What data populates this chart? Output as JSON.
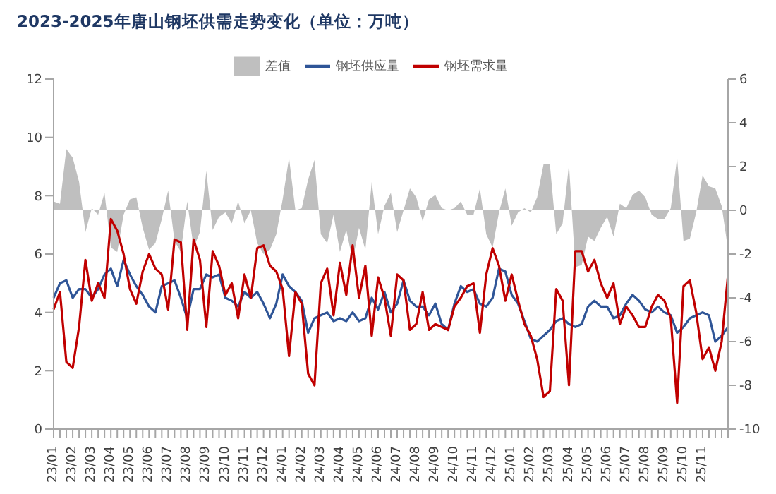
{
  "chart_data": {
    "type": "line",
    "title": "2023-2025年唐山钢坯供需走势变化（单位：万吨）",
    "categories": [
      "23/01",
      null,
      null,
      "23/02",
      null,
      null,
      "23/03",
      null,
      null,
      "23/04",
      null,
      null,
      "23/05",
      null,
      null,
      "23/06",
      null,
      null,
      "23/07",
      null,
      null,
      "23/08",
      null,
      null,
      "23/09",
      null,
      null,
      "23/10",
      null,
      null,
      "23/11",
      null,
      null,
      "23/12",
      null,
      null,
      "24/01",
      null,
      null,
      "24/02",
      null,
      null,
      "24/03",
      null,
      null,
      "24/04",
      null,
      null,
      "24/05",
      null,
      null,
      "24/06",
      null,
      null,
      "24/07",
      null,
      null,
      "24/08",
      null,
      null,
      "24/09",
      null,
      null,
      "24/10",
      null,
      null,
      "24/11",
      null,
      null,
      "24/12",
      null,
      null,
      "25/01",
      null,
      null,
      "25/02",
      null,
      null,
      "25/03",
      null,
      null,
      "25/04",
      null,
      null,
      "25/05",
      null,
      null,
      "25/06",
      null,
      null,
      "25/07",
      null,
      null,
      "25/08",
      null,
      null,
      "25/09",
      null,
      null,
      "25/10",
      null,
      null,
      "25/11",
      null,
      null,
      null,
      null
    ],
    "series": [
      {
        "name": "差值",
        "type": "area",
        "axis": "y2",
        "color": "#bfbfbf",
        "values": [
          0.4,
          0.3,
          2.8,
          2.4,
          1.3,
          -1.0,
          0.1,
          -0.2,
          0.8,
          -1.7,
          -1.9,
          -0.2,
          0.5,
          0.6,
          -0.8,
          -1.8,
          -1.5,
          -0.4,
          0.9,
          -1.4,
          -1.9,
          0.4,
          -1.7,
          -1.0,
          1.8,
          -0.9,
          -0.3,
          -0.1,
          -0.6,
          0.4,
          -0.6,
          0.0,
          -1.5,
          -2.0,
          -1.8,
          -1.1,
          0.5,
          2.4,
          0.0,
          0.1,
          1.4,
          2.3,
          -1.1,
          -1.5,
          -0.2,
          -1.9,
          -0.9,
          -2.3,
          -0.8,
          -1.8,
          1.3,
          -1.1,
          0.2,
          0.8,
          -1.0,
          0.0,
          1.0,
          0.6,
          -0.5,
          0.5,
          0.7,
          0.1,
          0.0,
          0.1,
          0.4,
          -0.2,
          -0.2,
          1.0,
          -1.1,
          -1.7,
          -0.1,
          1.0,
          -0.7,
          -0.1,
          0.1,
          -0.1,
          0.6,
          2.1,
          2.1,
          -1.1,
          -0.6,
          2.1,
          -2.6,
          -2.5,
          -1.2,
          -1.4,
          -0.8,
          -0.3,
          -1.2,
          0.3,
          0.1,
          0.7,
          0.9,
          0.6,
          -0.2,
          -0.4,
          -0.4,
          0.1,
          2.4,
          -1.4,
          -1.3,
          -0.1,
          1.6,
          1.1,
          1.0,
          0.2,
          -1.8
        ]
      },
      {
        "name": "钢坯供应量",
        "color": "#2f5597",
        "values": [
          4.5,
          5.0,
          5.1,
          4.5,
          4.8,
          4.8,
          4.5,
          4.8,
          5.3,
          5.5,
          4.9,
          5.8,
          5.3,
          4.9,
          4.6,
          4.2,
          4.0,
          4.9,
          5.0,
          5.1,
          4.5,
          3.8,
          4.8,
          4.8,
          5.3,
          5.2,
          5.3,
          4.5,
          4.4,
          4.2,
          4.7,
          4.5,
          4.7,
          4.3,
          3.8,
          4.3,
          5.3,
          4.9,
          4.7,
          4.4,
          3.3,
          3.8,
          3.9,
          4.0,
          3.7,
          3.8,
          3.7,
          4.0,
          3.7,
          3.8,
          4.5,
          4.1,
          4.7,
          4.0,
          4.3,
          5.1,
          4.4,
          4.2,
          4.2,
          3.9,
          4.3,
          3.6,
          3.4,
          4.3,
          4.9,
          4.7,
          4.8,
          4.3,
          4.2,
          4.5,
          5.5,
          5.4,
          4.6,
          4.3,
          3.7,
          3.1,
          3.0,
          3.2,
          3.4,
          3.7,
          3.8,
          3.6,
          3.5,
          3.6,
          4.2,
          4.4,
          4.2,
          4.2,
          3.8,
          3.9,
          4.3,
          4.6,
          4.4,
          4.1,
          4.0,
          4.2,
          4.0,
          3.9,
          3.3,
          3.5,
          3.8,
          3.9,
          4.0,
          3.9,
          3.0,
          3.2,
          3.5
        ]
      },
      {
        "name": "钢坯需求量",
        "color": "#c00000",
        "values": [
          4.1,
          4.7,
          2.3,
          2.1,
          3.5,
          5.8,
          4.4,
          5.0,
          4.5,
          7.2,
          6.8,
          6.0,
          4.8,
          4.3,
          5.4,
          6.0,
          5.5,
          5.3,
          4.1,
          6.5,
          6.4,
          3.4,
          6.5,
          5.8,
          3.5,
          6.1,
          5.6,
          4.6,
          5.0,
          3.8,
          5.3,
          4.5,
          6.2,
          6.3,
          5.6,
          5.4,
          4.8,
          2.5,
          4.7,
          4.3,
          1.9,
          1.5,
          5.0,
          5.5,
          3.9,
          5.7,
          4.6,
          6.3,
          4.5,
          5.6,
          3.2,
          5.2,
          4.5,
          3.2,
          5.3,
          5.1,
          3.4,
          3.6,
          4.7,
          3.4,
          3.6,
          3.5,
          3.4,
          4.2,
          4.5,
          4.9,
          5.0,
          3.3,
          5.3,
          6.2,
          5.6,
          4.4,
          5.3,
          4.4,
          3.6,
          3.2,
          2.4,
          1.1,
          1.3,
          4.8,
          4.4,
          1.5,
          6.1,
          6.1,
          5.4,
          5.8,
          5.0,
          4.5,
          5.0,
          3.6,
          4.2,
          3.9,
          3.5,
          3.5,
          4.2,
          4.6,
          4.4,
          3.8,
          0.9,
          4.9,
          5.1,
          4.0,
          2.4,
          2.8,
          2.0,
          3.0,
          5.3
        ]
      }
    ],
    "ylim": [
      0,
      12
    ],
    "yticks": [
      0,
      2,
      4,
      6,
      8,
      10,
      12
    ],
    "y2lim": [
      -10,
      6
    ],
    "y2ticks": [
      -10,
      -8,
      -6,
      -4,
      -2,
      0,
      2,
      4,
      6
    ],
    "legend": "top"
  }
}
